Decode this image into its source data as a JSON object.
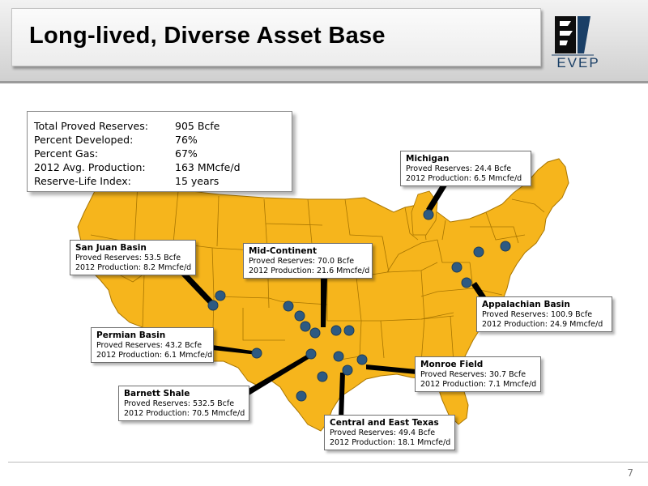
{
  "slide": {
    "title": "Long-lived, Diverse Asset Base",
    "logo_text": "EVEP",
    "page_number": "7"
  },
  "summary": {
    "rows": [
      {
        "label": "Total Proved Reserves:",
        "value": "905 Bcfe"
      },
      {
        "label": "Percent Developed:",
        "value": "76%"
      },
      {
        "label": "Percent Gas:",
        "value": "67%"
      },
      {
        "label": "2012 Avg. Production:",
        "value": "163  MMcfe/d"
      },
      {
        "label": "Reserve-Life Index:",
        "value": "15 years"
      }
    ]
  },
  "callouts": {
    "michigan": {
      "name": "Michigan",
      "reserves": "Proved Reserves: 24.4 Bcfe",
      "production": "2012 Production: 6.5 Mmcfe/d"
    },
    "san_juan": {
      "name": "San Juan Basin",
      "reserves": "Proved Reserves: 53.5 Bcfe",
      "production": "2012 Production: 8.2 Mmcfe/d"
    },
    "mid_continent": {
      "name": "Mid-Continent",
      "reserves": "Proved Reserves: 70.0 Bcfe",
      "production": "2012 Production: 21.6 Mmcfe/d"
    },
    "appalachian": {
      "name": "Appalachian Basin",
      "reserves": "Proved Reserves: 100.9 Bcfe",
      "production": "2012 Production: 24.9 Mmcfe/d"
    },
    "permian": {
      "name": "Permian Basin",
      "reserves": "Proved Reserves: 43.2 Bcfe",
      "production": "2012 Production: 6.1 Mmcfe/d"
    },
    "monroe": {
      "name": "Monroe Field",
      "reserves": "Proved Reserves: 30.7 Bcfe",
      "production": "2012 Production: 7.1 Mmcfe/d"
    },
    "barnett": {
      "name": "Barnett Shale",
      "reserves": "Proved Reserves: 532.5 Bcfe",
      "production": "2012 Production: 70.5 Mmcfe/d"
    },
    "central_east_texas": {
      "name": "Central and East Texas",
      "reserves": "Proved Reserves: 49.4 Bcfe",
      "production": "2012 Production: 18.1 Mmcfe/d"
    }
  },
  "colors": {
    "map_fill": "#f6b51c",
    "state_border": "#a87500",
    "asset_marker": "#2d5a82",
    "leader_line": "#000000",
    "title_text": "#000000",
    "logo": "#1a3f66"
  }
}
